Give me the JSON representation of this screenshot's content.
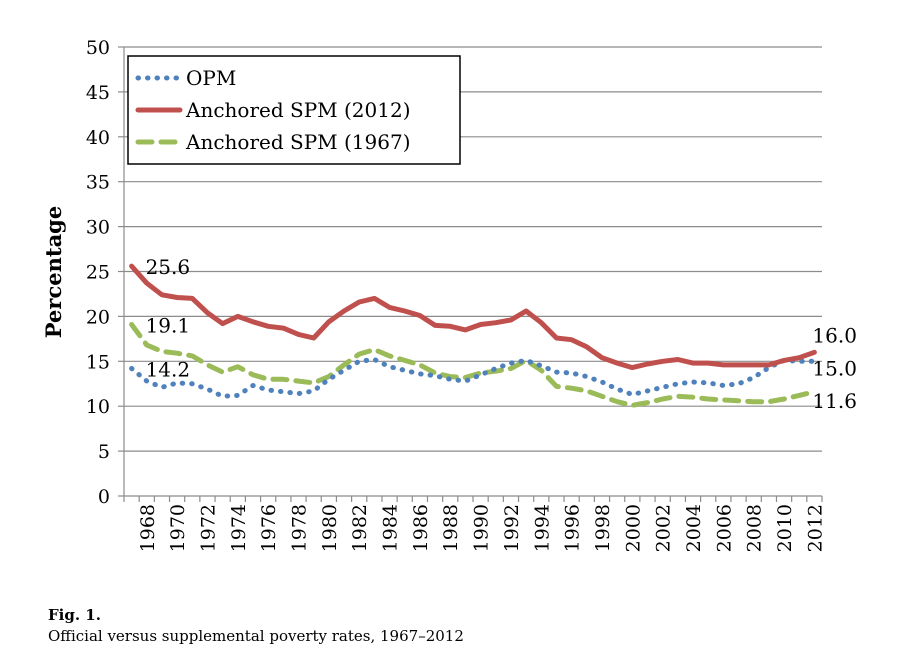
{
  "chart_data": {
    "type": "line",
    "ylabel": "Percentage",
    "ylim": [
      0,
      50
    ],
    "yticks": [
      0,
      5,
      10,
      15,
      20,
      25,
      30,
      35,
      40,
      45,
      50
    ],
    "x": [
      1967,
      1968,
      1969,
      1970,
      1971,
      1972,
      1973,
      1974,
      1975,
      1976,
      1977,
      1978,
      1979,
      1980,
      1981,
      1982,
      1983,
      1984,
      1985,
      1986,
      1987,
      1988,
      1989,
      1990,
      1991,
      1992,
      1993,
      1994,
      1995,
      1996,
      1997,
      1998,
      1999,
      2000,
      2001,
      2002,
      2003,
      2004,
      2005,
      2006,
      2007,
      2008,
      2009,
      2010,
      2011,
      2012
    ],
    "xtick_labels": [
      "1968",
      "1970",
      "1972",
      "1974",
      "1976",
      "1978",
      "1980",
      "1982",
      "1984",
      "1986",
      "1988",
      "1990",
      "1992",
      "1994",
      "1996",
      "1998",
      "2000",
      "2002",
      "2004",
      "2006",
      "2008",
      "2010",
      "2012"
    ],
    "grid": true,
    "legend_position": "top-left",
    "series": [
      {
        "name": "OPM",
        "style": "dotted",
        "color": "#4f81bd",
        "values": [
          14.2,
          12.8,
          12.1,
          12.6,
          12.5,
          11.9,
          11.1,
          11.2,
          12.3,
          11.8,
          11.6,
          11.4,
          11.7,
          13.0,
          14.0,
          15.0,
          15.2,
          14.4,
          14.0,
          13.6,
          13.4,
          13.0,
          12.8,
          13.5,
          14.2,
          14.8,
          15.1,
          14.5,
          13.8,
          13.7,
          13.3,
          12.7,
          11.9,
          11.3,
          11.7,
          12.1,
          12.5,
          12.7,
          12.6,
          12.3,
          12.5,
          13.2,
          14.3,
          15.1,
          15.0,
          15.0
        ]
      },
      {
        "name": "Anchored SPM (2012)",
        "style": "solid",
        "color": "#c0504d",
        "values": [
          25.6,
          23.7,
          22.4,
          22.1,
          22.0,
          20.4,
          19.2,
          20.0,
          19.4,
          18.9,
          18.7,
          18.0,
          17.6,
          19.4,
          20.6,
          21.6,
          22.0,
          21.0,
          20.6,
          20.1,
          19.0,
          18.9,
          18.5,
          19.1,
          19.3,
          19.6,
          20.6,
          19.3,
          17.6,
          17.4,
          16.6,
          15.4,
          14.8,
          14.3,
          14.7,
          15.0,
          15.2,
          14.8,
          14.8,
          14.6,
          14.6,
          14.6,
          14.6,
          15.1,
          15.4,
          16.0
        ]
      },
      {
        "name": "Anchored SPM (1967)",
        "style": "dashed",
        "color": "#9bbb59",
        "values": [
          19.1,
          16.8,
          16.1,
          15.9,
          15.6,
          14.6,
          13.8,
          14.4,
          13.5,
          13.0,
          13.0,
          12.8,
          12.6,
          13.3,
          14.6,
          15.8,
          16.3,
          15.6,
          15.1,
          14.6,
          13.7,
          13.3,
          13.2,
          13.7,
          13.9,
          14.2,
          15.1,
          14.0,
          12.2,
          12.0,
          11.7,
          11.1,
          10.5,
          10.1,
          10.4,
          10.8,
          11.1,
          11.0,
          10.8,
          10.7,
          10.6,
          10.5,
          10.5,
          10.8,
          11.2,
          11.6
        ]
      }
    ],
    "data_labels": [
      {
        "text": "25.6",
        "series": 1,
        "x": 1967,
        "y": 25.6
      },
      {
        "text": "19.1",
        "series": 2,
        "x": 1967,
        "y": 19.1
      },
      {
        "text": "14.2",
        "series": 0,
        "x": 1967,
        "y": 14.2
      },
      {
        "text": "16.0",
        "series": 1,
        "x": 2012,
        "y": 16.0
      },
      {
        "text": "15.0",
        "series": 0,
        "x": 2012,
        "y": 15.0
      },
      {
        "text": "11.6",
        "series": 2,
        "x": 2012,
        "y": 11.6
      }
    ]
  },
  "caption": {
    "label": "Fig. 1.",
    "text": "Official versus supplemental poverty rates, 1967–2012"
  }
}
